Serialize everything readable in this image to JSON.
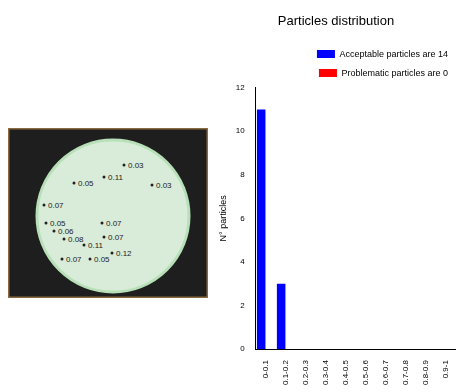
{
  "chart_data": {
    "type": "bar",
    "title": "Particles distribution",
    "y_label": "N° particles",
    "categories": [
      "0-0.1",
      "0.1-0.2",
      "0.2-0.3",
      "0.3-0.4",
      "0.4-0.5",
      "0.5-0.6",
      "0.6-0.7",
      "0.7-0.8",
      "0.8-0.9",
      "0.9-1"
    ],
    "series": [
      {
        "name": "Acceptable particles are 14",
        "color": "#0000ff",
        "values": [
          11,
          3,
          0,
          0,
          0,
          0,
          0,
          0,
          0,
          0
        ]
      },
      {
        "name": "Problematic particles are 0",
        "color": "#ff0000",
        "values": [
          0,
          0,
          0,
          0,
          0,
          0,
          0,
          0,
          0,
          0
        ]
      }
    ],
    "ylim": [
      0,
      12
    ],
    "yticks": [
      0,
      2,
      4,
      6,
      8,
      10,
      12
    ],
    "legend": "upper right",
    "grid": false
  },
  "photo": {
    "labels": [
      "0.03",
      "0.11",
      "0.03",
      "0.05",
      "0.07",
      "0.07",
      "0.05",
      "0.06",
      "0.08",
      "0.11",
      "0.07",
      "0.12",
      "0.05",
      "0.07"
    ]
  }
}
